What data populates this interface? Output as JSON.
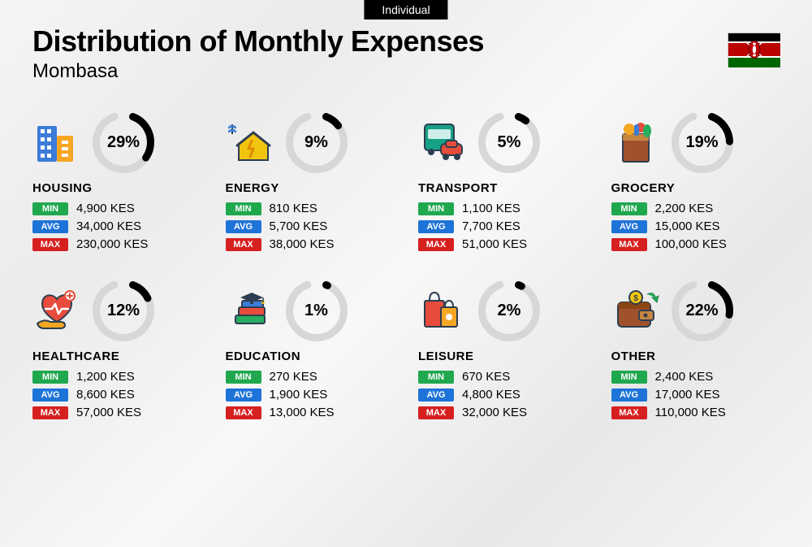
{
  "badge": "Individual",
  "title": "Distribution of Monthly Expenses",
  "subtitle": "Mombasa",
  "currency": "KES",
  "labels": {
    "min": "MIN",
    "avg": "AVG",
    "max": "MAX"
  },
  "donut": {
    "size": 76,
    "stroke": 9,
    "track_color": "#d7d7d7",
    "fill_color": "#000000",
    "gap_deg": 40
  },
  "flag": {
    "stripes": [
      "#000000",
      "#ffffff",
      "#bb0000",
      "#ffffff",
      "#006600"
    ],
    "heights": [
      10,
      2,
      16,
      2,
      12
    ],
    "shield_color": "#bb0000",
    "spear_color": "#ffffff"
  },
  "tag_colors": {
    "min": "#1fa84e",
    "avg": "#1e73d8",
    "max": "#d62020"
  },
  "categories": [
    {
      "key": "housing",
      "name": "HOUSING",
      "pct": 29,
      "min": "4,900 KES",
      "avg": "34,000 KES",
      "max": "230,000 KES",
      "icon": "buildings"
    },
    {
      "key": "energy",
      "name": "ENERGY",
      "pct": 9,
      "min": "810 KES",
      "avg": "5,700 KES",
      "max": "38,000 KES",
      "icon": "energy-house"
    },
    {
      "key": "transport",
      "name": "TRANSPORT",
      "pct": 5,
      "min": "1,100 KES",
      "avg": "7,700 KES",
      "max": "51,000 KES",
      "icon": "bus-car"
    },
    {
      "key": "grocery",
      "name": "GROCERY",
      "pct": 19,
      "min": "2,200 KES",
      "avg": "15,000 KES",
      "max": "100,000 KES",
      "icon": "grocery-bag"
    },
    {
      "key": "healthcare",
      "name": "HEALTHCARE",
      "pct": 12,
      "min": "1,200 KES",
      "avg": "8,600 KES",
      "max": "57,000 KES",
      "icon": "heart-hand"
    },
    {
      "key": "education",
      "name": "EDUCATION",
      "pct": 1,
      "min": "270 KES",
      "avg": "1,900 KES",
      "max": "13,000 KES",
      "icon": "grad-books"
    },
    {
      "key": "leisure",
      "name": "LEISURE",
      "pct": 2,
      "min": "670 KES",
      "avg": "4,800 KES",
      "max": "32,000 KES",
      "icon": "shopping-bags"
    },
    {
      "key": "other",
      "name": "OTHER",
      "pct": 22,
      "min": "2,400 KES",
      "avg": "17,000 KES",
      "max": "110,000 KES",
      "icon": "wallet"
    }
  ],
  "icons_palette": {
    "blue": "#3b7dd8",
    "blue_dark": "#2b5aa0",
    "orange": "#f5a623",
    "orange_dark": "#e08b00",
    "red": "#e74c3c",
    "green": "#27ae60",
    "green_dark": "#1e8449",
    "yellow": "#f1c40f",
    "brown": "#a0522d",
    "teal": "#16a085",
    "dark": "#2c3e50",
    "grey": "#7f8c8d",
    "purple": "#8e44ad"
  }
}
